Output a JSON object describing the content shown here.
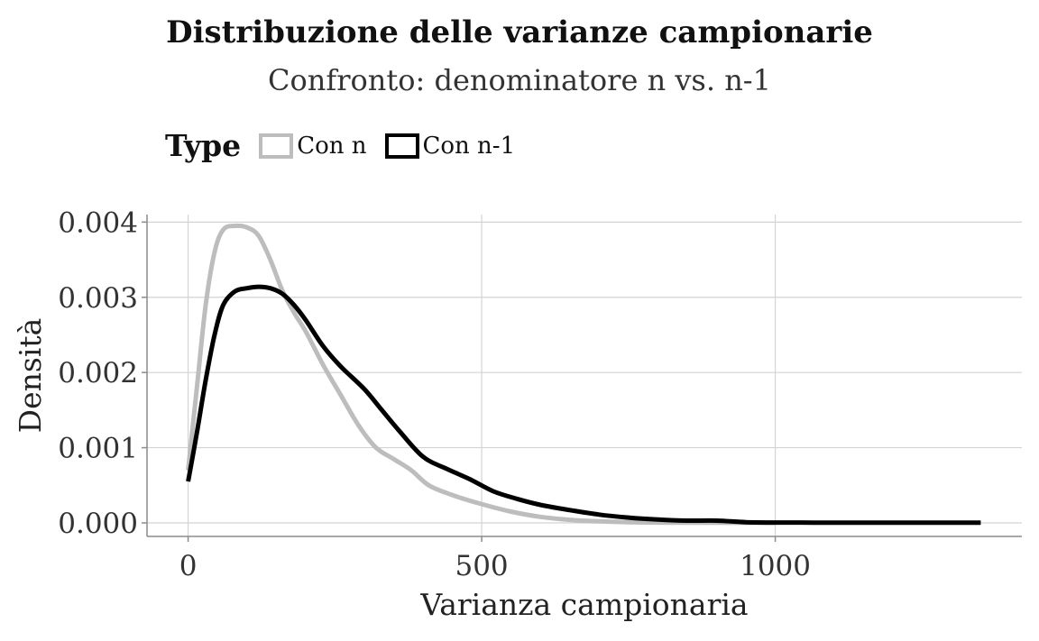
{
  "chart_data": {
    "type": "line",
    "title": "Distribuzione delle varianze campionarie",
    "subtitle": "Confronto: denominatore n vs. n-1",
    "xlabel": "Varianza campionaria",
    "ylabel": "Densità",
    "xlim": [
      -70,
      1420
    ],
    "ylim": [
      -0.00018,
      0.0041
    ],
    "x_ticks": [
      0,
      500,
      1000
    ],
    "x_tick_labels": [
      "0",
      "500",
      "1000"
    ],
    "y_ticks": [
      0,
      0.001,
      0.002,
      0.003,
      0.004
    ],
    "y_tick_labels": [
      "0.000",
      "0.001",
      "0.002",
      "0.003",
      "0.004"
    ],
    "grid": true,
    "legend": {
      "title": "Type",
      "position": "top-left"
    },
    "series": [
      {
        "name": "Con n",
        "color": "#bdbdbd",
        "x": [
          0,
          15,
          30,
          45,
          60,
          80,
          100,
          120,
          140,
          160,
          180,
          200,
          230,
          260,
          290,
          320,
          350,
          380,
          410,
          450,
          500,
          550,
          600,
          650,
          700,
          750,
          800,
          900,
          1000
        ],
        "y": [
          0.0007,
          0.0018,
          0.0029,
          0.0036,
          0.0039,
          0.00395,
          0.00393,
          0.00382,
          0.0035,
          0.0031,
          0.0028,
          0.00255,
          0.0021,
          0.0017,
          0.0013,
          0.001,
          0.00085,
          0.0007,
          0.0005,
          0.00037,
          0.00025,
          0.00015,
          8e-05,
          4e-05,
          2e-05,
          1e-05,
          5e-06,
          2e-06,
          1e-06
        ]
      },
      {
        "name": "Con n-1",
        "color": "#000000",
        "x": [
          0,
          15,
          30,
          45,
          60,
          80,
          100,
          120,
          140,
          160,
          180,
          200,
          230,
          260,
          300,
          330,
          360,
          400,
          440,
          480,
          520,
          560,
          600,
          650,
          700,
          750,
          800,
          850,
          900,
          950,
          1000,
          1100,
          1200,
          1300,
          1350
        ],
        "y": [
          0.00055,
          0.0012,
          0.0019,
          0.0025,
          0.0029,
          0.00308,
          0.00312,
          0.00314,
          0.00312,
          0.00305,
          0.0029,
          0.0027,
          0.00235,
          0.00208,
          0.00178,
          0.0015,
          0.00122,
          0.00088,
          0.00072,
          0.00058,
          0.00042,
          0.00032,
          0.00024,
          0.00017,
          0.00011,
          7e-05,
          4.5e-05,
          3e-05,
          3e-05,
          1e-05,
          5e-06,
          3e-06,
          2e-06,
          2e-06,
          2e-06
        ]
      }
    ]
  }
}
